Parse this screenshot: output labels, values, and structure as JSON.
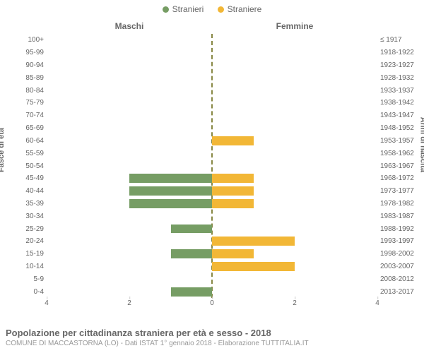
{
  "chart": {
    "type": "population-pyramid",
    "background_color": "#ffffff",
    "grid_color": "#cccccc",
    "center_line_color": "#888844",
    "legend": [
      {
        "label": "Stranieri",
        "color": "#769d64"
      },
      {
        "label": "Straniere",
        "color": "#f2b736"
      }
    ],
    "column_headers": {
      "left": "Maschi",
      "right": "Femmine"
    },
    "y_axis_title_left": "Fasce di età",
    "y_axis_title_right": "Anni di nascita",
    "x_ticks": [
      4,
      2,
      0,
      2,
      4
    ],
    "x_max": 4,
    "bar_color_left": "#769d64",
    "bar_color_right": "#f2b736",
    "label_fontsize": 10,
    "rows": [
      {
        "age": "100+",
        "birth": "≤ 1917",
        "m": 0,
        "f": 0
      },
      {
        "age": "95-99",
        "birth": "1918-1922",
        "m": 0,
        "f": 0
      },
      {
        "age": "90-94",
        "birth": "1923-1927",
        "m": 0,
        "f": 0
      },
      {
        "age": "85-89",
        "birth": "1928-1932",
        "m": 0,
        "f": 0
      },
      {
        "age": "80-84",
        "birth": "1933-1937",
        "m": 0,
        "f": 0
      },
      {
        "age": "75-79",
        "birth": "1938-1942",
        "m": 0,
        "f": 0
      },
      {
        "age": "70-74",
        "birth": "1943-1947",
        "m": 0,
        "f": 0
      },
      {
        "age": "65-69",
        "birth": "1948-1952",
        "m": 0,
        "f": 0
      },
      {
        "age": "60-64",
        "birth": "1953-1957",
        "m": 0,
        "f": 1
      },
      {
        "age": "55-59",
        "birth": "1958-1962",
        "m": 0,
        "f": 0
      },
      {
        "age": "50-54",
        "birth": "1963-1967",
        "m": 0,
        "f": 0
      },
      {
        "age": "45-49",
        "birth": "1968-1972",
        "m": 2,
        "f": 1
      },
      {
        "age": "40-44",
        "birth": "1973-1977",
        "m": 2,
        "f": 1
      },
      {
        "age": "35-39",
        "birth": "1978-1982",
        "m": 2,
        "f": 1
      },
      {
        "age": "30-34",
        "birth": "1983-1987",
        "m": 0,
        "f": 0
      },
      {
        "age": "25-29",
        "birth": "1988-1992",
        "m": 1,
        "f": 0
      },
      {
        "age": "20-24",
        "birth": "1993-1997",
        "m": 0,
        "f": 2
      },
      {
        "age": "15-19",
        "birth": "1998-2002",
        "m": 1,
        "f": 1
      },
      {
        "age": "10-14",
        "birth": "2003-2007",
        "m": 0,
        "f": 2
      },
      {
        "age": "5-9",
        "birth": "2008-2012",
        "m": 0,
        "f": 0
      },
      {
        "age": "0-4",
        "birth": "2013-2017",
        "m": 1,
        "f": 0
      }
    ],
    "title": "Popolazione per cittadinanza straniera per età e sesso - 2018",
    "subtitle": "COMUNE DI MACCASTORNA (LO) - Dati ISTAT 1° gennaio 2018 - Elaborazione TUTTITALIA.IT"
  }
}
